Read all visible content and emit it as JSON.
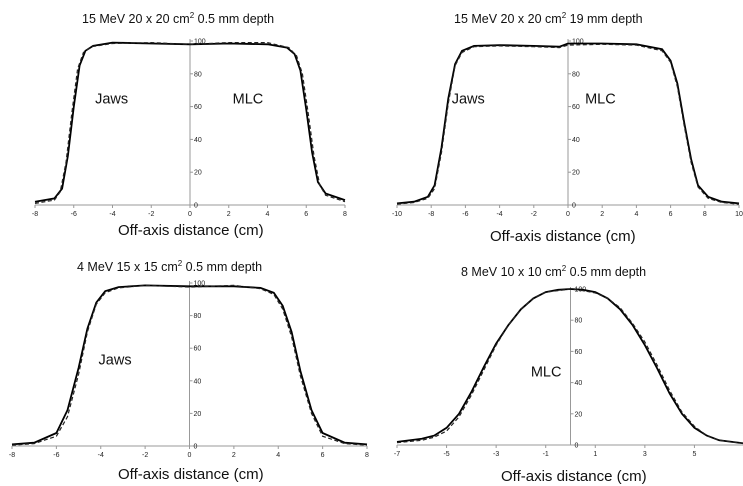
{
  "chart_data": [
    {
      "type": "line",
      "title": {
        "pre": "15 MeV 20 x 20 cm",
        "sup": "2",
        "post": " 0.5 mm  depth"
      },
      "xlabel": "Off-axis distance (cm)",
      "xlim": [
        -8,
        8
      ],
      "ylim": [
        0,
        100
      ],
      "xticks": [
        -8,
        -6,
        -4,
        -2,
        0,
        2,
        4,
        6,
        8
      ],
      "yticks": [
        0,
        20,
        40,
        60,
        80,
        100
      ],
      "annotations": [
        {
          "text": "Jaws",
          "x": -4.9,
          "y": 62
        },
        {
          "text": "MLC",
          "x": 2.2,
          "y": 62
        }
      ],
      "series": [
        {
          "style": "solid",
          "x": [
            -8,
            -7,
            -6.6,
            -6.3,
            -6.0,
            -5.7,
            -5.4,
            -5.0,
            -4,
            -2,
            0,
            2,
            4,
            5.0,
            5.4,
            5.7,
            6.0,
            6.3,
            6.6,
            7,
            8
          ],
          "y": [
            2,
            4,
            10,
            30,
            60,
            85,
            94,
            97,
            99,
            98.5,
            98,
            98.5,
            98,
            96,
            92,
            82,
            58,
            32,
            14,
            7,
            3
          ]
        },
        {
          "style": "dashed",
          "x": [
            -8,
            -7,
            -6.7,
            -6.4,
            -6.1,
            -5.8,
            -5.5,
            -5.1,
            -4,
            -2,
            0,
            2,
            4,
            5.1,
            5.5,
            5.8,
            6.1,
            6.4,
            6.7,
            7,
            8
          ],
          "y": [
            1,
            3,
            8,
            26,
            56,
            83,
            93,
            96.5,
            98.5,
            99,
            98,
            99,
            99,
            96,
            91,
            80,
            56,
            30,
            12,
            6,
            2
          ]
        }
      ]
    },
    {
      "type": "line",
      "title": {
        "pre": "15 MeV 20 x 20 cm",
        "sup": "2",
        "post": " 19 mm  depth"
      },
      "xlabel": "Off-axis distance (cm)",
      "xlim": [
        -10,
        10
      ],
      "ylim": [
        0,
        100
      ],
      "xticks": [
        -10,
        -8,
        -6,
        -4,
        -2,
        0,
        2,
        4,
        6,
        8,
        10
      ],
      "yticks": [
        0,
        20,
        40,
        60,
        80,
        100
      ],
      "annotations": [
        {
          "text": "Jaws",
          "x": -6.8,
          "y": 62
        },
        {
          "text": "MLC",
          "x": 1.0,
          "y": 62
        }
      ],
      "series": [
        {
          "style": "solid",
          "x": [
            -10,
            -9,
            -8.2,
            -7.8,
            -7.4,
            -7.0,
            -6.6,
            -6.2,
            -5.5,
            -4,
            -2,
            -0.5,
            0,
            2,
            4,
            5.5,
            6.0,
            6.4,
            6.8,
            7.2,
            7.6,
            8.2,
            9,
            10
          ],
          "y": [
            1,
            2,
            5,
            12,
            35,
            65,
            86,
            94,
            97,
            97.5,
            97,
            96.5,
            98.5,
            98.5,
            98,
            95,
            88,
            74,
            50,
            28,
            12,
            5,
            2,
            1
          ]
        },
        {
          "style": "dashed",
          "x": [
            -10,
            -9,
            -8.2,
            -7.8,
            -7.4,
            -7.0,
            -6.6,
            -6.2,
            -5.5,
            -4,
            -2,
            -0.5,
            0,
            2,
            4,
            5.5,
            6.0,
            6.4,
            6.8,
            7.2,
            7.6,
            8.2,
            9,
            10
          ],
          "y": [
            0.5,
            1.5,
            4,
            10,
            32,
            62,
            85,
            93,
            96.5,
            97,
            96.5,
            96,
            97.5,
            98,
            97.5,
            94,
            87,
            72,
            48,
            26,
            11,
            4,
            1.5,
            0.5
          ]
        }
      ]
    },
    {
      "type": "line",
      "title": {
        "pre": "4 MeV 15 x 15 cm",
        "sup": "2",
        "post": " 0.5 mm  depth"
      },
      "xlabel": "Off-axis distance (cm)",
      "xlim": [
        -8,
        8
      ],
      "ylim": [
        0,
        100
      ],
      "xticks": [
        -8,
        -6,
        -4,
        -2,
        0,
        2,
        4,
        6,
        8
      ],
      "yticks": [
        0,
        20,
        40,
        60,
        80,
        100
      ],
      "annotations": [
        {
          "text": "Jaws",
          "x": -4.1,
          "y": 50
        }
      ],
      "series": [
        {
          "style": "solid",
          "x": [
            -8,
            -7,
            -6.0,
            -5.5,
            -5.0,
            -4.6,
            -4.2,
            -3.8,
            -3.2,
            -2,
            0,
            2,
            3.2,
            3.8,
            4.2,
            4.6,
            5.0,
            5.5,
            6.0,
            7,
            8
          ],
          "y": [
            1,
            2,
            8,
            22,
            48,
            72,
            88,
            95,
            97.5,
            98.5,
            98,
            98,
            97,
            94,
            86,
            70,
            46,
            22,
            8,
            2,
            1
          ]
        },
        {
          "style": "dashed",
          "x": [
            -8,
            -7,
            -6.0,
            -5.5,
            -5.0,
            -4.6,
            -4.2,
            -3.8,
            -3.2,
            -2,
            0,
            2,
            3.2,
            3.8,
            4.2,
            4.6,
            5.0,
            5.5,
            6.0,
            7,
            8
          ],
          "y": [
            0.5,
            1.5,
            6,
            18,
            44,
            70,
            87,
            94,
            97,
            98.5,
            97.5,
            98.5,
            96.5,
            93,
            84,
            67,
            43,
            20,
            6,
            1.5,
            0.5
          ]
        }
      ]
    },
    {
      "type": "line",
      "title": {
        "pre": "8 MeV 10 x 10 cm",
        "sup": "2",
        "post": " 0.5 mm  depth"
      },
      "xlabel": "Off-axis distance (cm)",
      "xlim": [
        -7,
        7
      ],
      "ylim": [
        0,
        100
      ],
      "xticks": [
        -7,
        -5,
        -3,
        -1,
        1,
        3,
        5
      ],
      "yticks": [
        0,
        20,
        40,
        60,
        80,
        100
      ],
      "annotations": [
        {
          "text": "MLC",
          "x": -1.6,
          "y": 44
        }
      ],
      "series": [
        {
          "style": "solid",
          "x": [
            -7,
            -6,
            -5.5,
            -5,
            -4.5,
            -4,
            -3.5,
            -3,
            -2.5,
            -2,
            -1.5,
            -1,
            -0.5,
            0,
            0.5,
            1,
            1.5,
            2,
            2.5,
            3,
            3.5,
            4,
            4.5,
            5,
            5.5,
            6,
            7
          ],
          "y": [
            2,
            4,
            6,
            11,
            20,
            34,
            50,
            65,
            77,
            87,
            94,
            98,
            99.5,
            100,
            99.5,
            98,
            94,
            87,
            77,
            64,
            49,
            33,
            20,
            11,
            6,
            3,
            1
          ]
        },
        {
          "style": "dashed",
          "x": [
            -7,
            -6,
            -5.5,
            -5,
            -4.5,
            -4,
            -3.5,
            -3,
            -2.5,
            -2,
            -1.5,
            -1,
            -0.5,
            0,
            0.5,
            1,
            1.5,
            2,
            2.5,
            3,
            3.5,
            4,
            4.5,
            5,
            5.5,
            6,
            7
          ],
          "y": [
            1.5,
            3,
            5,
            9,
            18,
            32,
            48,
            64,
            77,
            87,
            94,
            98,
            99,
            100,
            99,
            97.5,
            94,
            88,
            78,
            66,
            51,
            35,
            21,
            12,
            6,
            3,
            1
          ]
        }
      ]
    }
  ]
}
